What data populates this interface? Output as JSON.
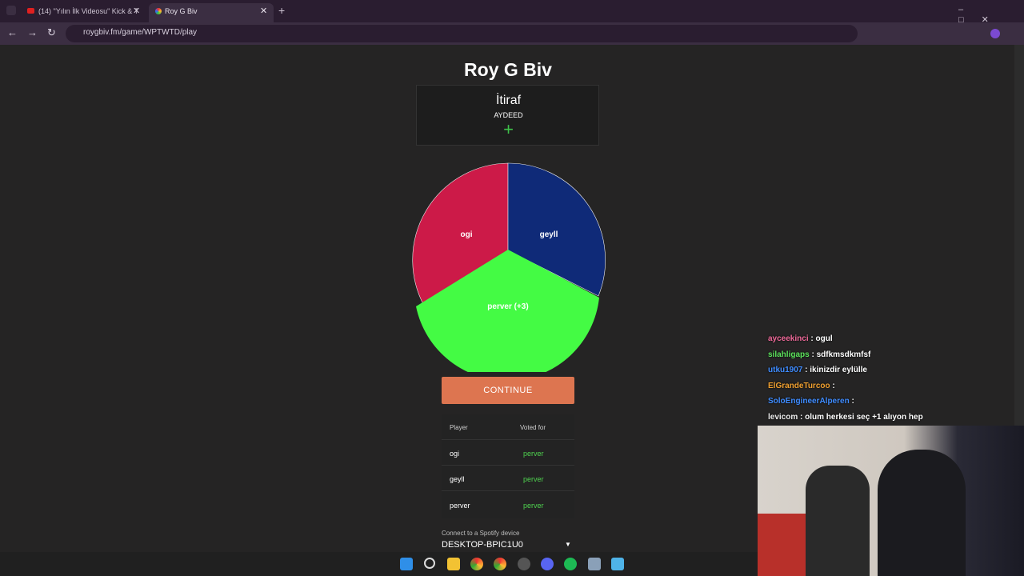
{
  "browser": {
    "tabs": [
      "(14) \"Yılın İlk Videosu\" Kick & T",
      "Roy G Biv"
    ],
    "url": "roygbiv.fm/game/WPTWTD/play"
  },
  "game": {
    "title": "Roy G Biv",
    "card_title": "İtiraf",
    "card_subtitle": "AYDEED",
    "wheel": [
      "ogi",
      "geyll",
      "perver (+3)"
    ],
    "button": "CONTINUE",
    "table": {
      "headers": [
        "Player",
        "Voted for"
      ],
      "rows": [
        [
          "ogi",
          "perver"
        ],
        [
          "geyll",
          "perver"
        ],
        [
          "perver",
          "perver"
        ]
      ]
    },
    "spotify_label": "Connect to a Spotify device",
    "device": "DESKTOP-BPIC1U0"
  },
  "chat": [
    [
      "ayceekinci",
      ": ogul"
    ],
    [
      "silahligaps",
      ": sdfkmsdkmfsf"
    ],
    [
      "utku1907",
      ": ikinizdir eylülle"
    ],
    [
      "ElGrandeTurcoo",
      ":"
    ],
    [
      "SoloEngineerAlperen",
      ":"
    ],
    [
      "levicom",
      ": olum herkesi seç +1 alıyon hep"
    ]
  ]
}
